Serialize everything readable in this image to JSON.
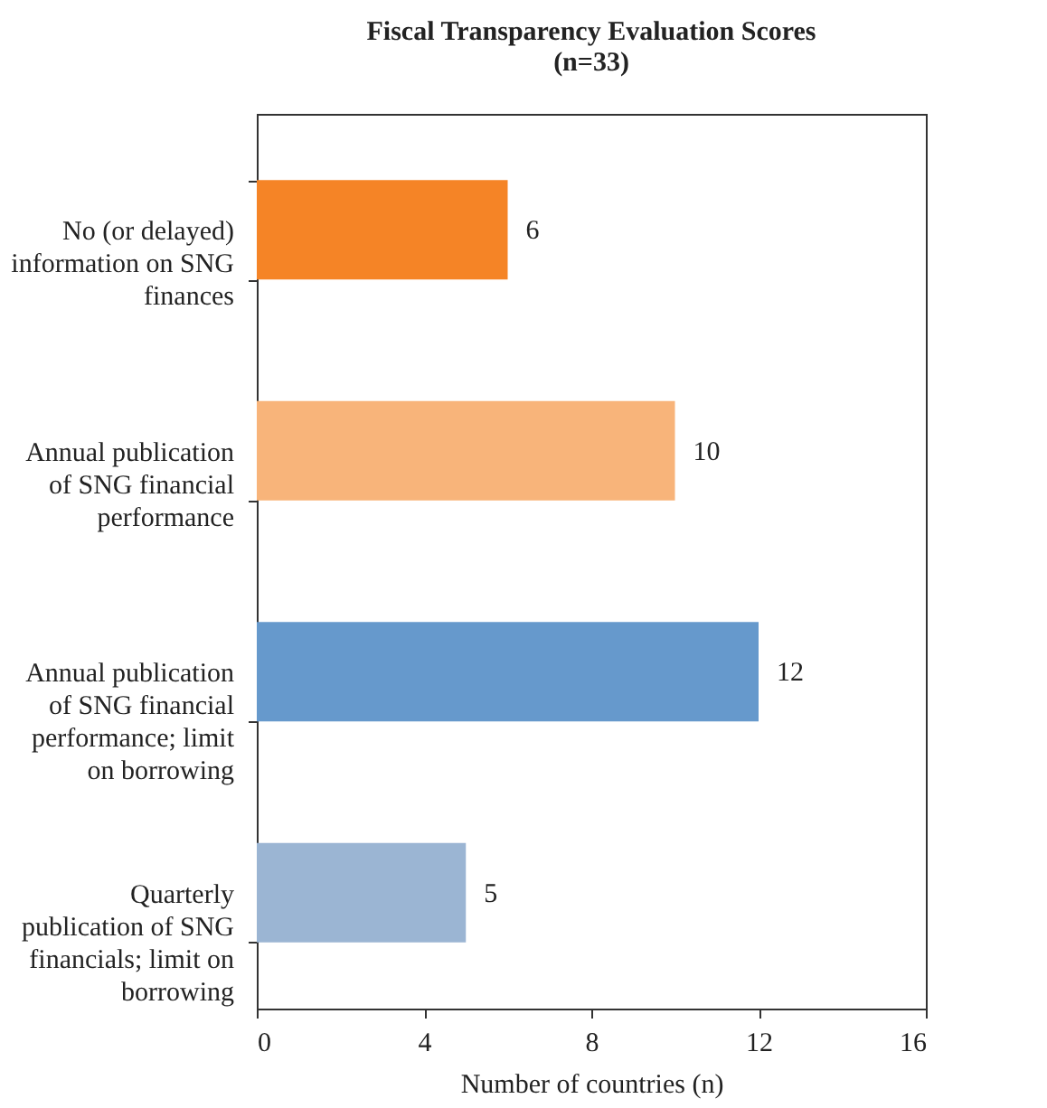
{
  "chart_data": {
    "type": "bar",
    "orientation": "horizontal",
    "title": "Fiscal Transparency Evaluation Scores",
    "subtitle": "(n=33)",
    "xlabel": "Number of countries (n)",
    "categories": [
      "No (or delayed) information on SNG finances",
      "Annual publication of SNG financial performance",
      "Annual publication of SNG financial performance; limit on borrowing",
      "Quarterly publication of SNG financials; limit on borrowing"
    ],
    "values": [
      6,
      10,
      12,
      5
    ],
    "colors": [
      "#f58426",
      "#f8b47a",
      "#6699cc",
      "#9bb5d3"
    ],
    "xlim": [
      0,
      16
    ],
    "xticks": [
      0,
      4,
      8,
      12,
      16
    ],
    "grid": false,
    "data_labels": true
  }
}
